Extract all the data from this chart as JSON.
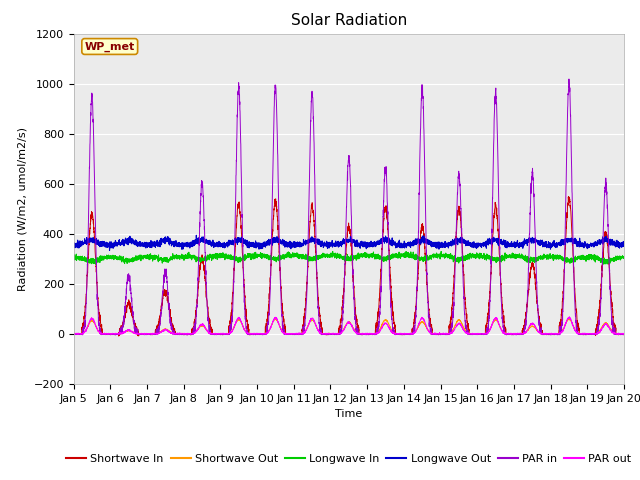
{
  "title": "Solar Radiation",
  "xlabel": "Time",
  "ylabel": "Radiation (W/m2, umol/m2/s)",
  "ylim": [
    -200,
    1200
  ],
  "yticks": [
    -200,
    0,
    200,
    400,
    600,
    800,
    1000,
    1200
  ],
  "xtick_labels": [
    "Jan 5",
    "Jan 6",
    "Jan 7",
    "Jan 8",
    "Jan 9",
    "Jan 10",
    "Jan 11",
    "Jan 12",
    "Jan 13",
    "Jan 14",
    "Jan 15",
    "Jan 16",
    "Jan 17",
    "Jan 18",
    "Jan 19",
    "Jan 20"
  ],
  "colors": {
    "shortwave_in": "#cc0000",
    "shortwave_out": "#ff9900",
    "longwave_in": "#00cc00",
    "longwave_out": "#0000cc",
    "par_in": "#9900cc",
    "par_out": "#ff00ff"
  },
  "legend_labels": [
    "Shortwave In",
    "Shortwave Out",
    "Longwave In",
    "Longwave Out",
    "PAR in",
    "PAR out"
  ],
  "annotation_text": "WP_met",
  "annotation_bg": "#ffffcc",
  "annotation_border": "#cc8800",
  "plot_bg": "#ebebeb",
  "fig_bg": "#ffffff",
  "title_fontsize": 11,
  "axis_label_fontsize": 8,
  "tick_fontsize": 8,
  "legend_fontsize": 8,
  "annot_fontsize": 8
}
